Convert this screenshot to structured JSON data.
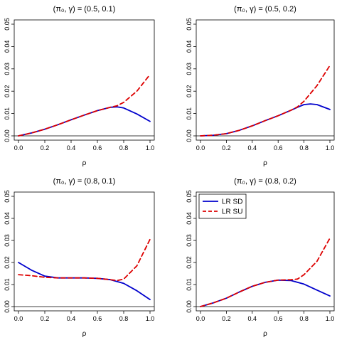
{
  "chart_data": [
    {
      "type": "line",
      "title": "(π₀, γ) = (0.5, 0.1)",
      "xlabel": "ρ",
      "ylabel": "",
      "xlim": [
        0,
        1
      ],
      "ylim": [
        0,
        0.05
      ],
      "xticks": [
        "0.0",
        "0.2",
        "0.4",
        "0.6",
        "0.8",
        "1.0"
      ],
      "yticks": [
        "0.00",
        "0.01",
        "0.02",
        "0.03",
        "0.04",
        "0.05"
      ],
      "reference_line_y": 0,
      "grid": false,
      "legend": null,
      "series": [
        {
          "name": "LR SD",
          "color": "#0000cc",
          "dash": "solid",
          "x": [
            0,
            0.1,
            0.2,
            0.3,
            0.4,
            0.5,
            0.6,
            0.7,
            0.75,
            0.8,
            0.9,
            1.0
          ],
          "y": [
            0,
            0.0013,
            0.003,
            0.005,
            0.0072,
            0.0093,
            0.0113,
            0.0128,
            0.013,
            0.0125,
            0.0098,
            0.0065
          ]
        },
        {
          "name": "LR SU",
          "color": "#dd0000",
          "dash": "dashed",
          "x": [
            0,
            0.1,
            0.2,
            0.3,
            0.4,
            0.5,
            0.6,
            0.7,
            0.75,
            0.8,
            0.9,
            1.0
          ],
          "y": [
            0,
            0.0013,
            0.003,
            0.005,
            0.0072,
            0.0093,
            0.0113,
            0.0128,
            0.0135,
            0.015,
            0.02,
            0.0275
          ]
        }
      ]
    },
    {
      "type": "line",
      "title": "(π₀, γ) = (0.5, 0.2)",
      "xlabel": "ρ",
      "ylabel": "",
      "xlim": [
        0,
        1
      ],
      "ylim": [
        0,
        0.05
      ],
      "xticks": [
        "0.0",
        "0.2",
        "0.4",
        "0.6",
        "0.8",
        "1.0"
      ],
      "yticks": [
        "0.00",
        "0.01",
        "0.02",
        "0.03",
        "0.04",
        "0.05"
      ],
      "reference_line_y": 0,
      "grid": false,
      "legend": null,
      "series": [
        {
          "name": "LR SD",
          "color": "#0000cc",
          "dash": "solid",
          "x": [
            0,
            0.1,
            0.2,
            0.3,
            0.4,
            0.5,
            0.6,
            0.7,
            0.75,
            0.8,
            0.85,
            0.9,
            1.0
          ],
          "y": [
            0,
            0.0003,
            0.001,
            0.0025,
            0.0045,
            0.0068,
            0.009,
            0.0115,
            0.0128,
            0.014,
            0.0143,
            0.014,
            0.0118
          ]
        },
        {
          "name": "LR SU",
          "color": "#dd0000",
          "dash": "dashed",
          "x": [
            0,
            0.1,
            0.2,
            0.3,
            0.4,
            0.5,
            0.6,
            0.7,
            0.75,
            0.8,
            0.9,
            1.0
          ],
          "y": [
            0,
            0.0003,
            0.001,
            0.0025,
            0.0045,
            0.0068,
            0.009,
            0.0115,
            0.013,
            0.0155,
            0.0225,
            0.0315
          ]
        }
      ]
    },
    {
      "type": "line",
      "title": "(π₀, γ) = (0.8, 0.1)",
      "xlabel": "ρ",
      "ylabel": "",
      "xlim": [
        0,
        1
      ],
      "ylim": [
        0,
        0.05
      ],
      "xticks": [
        "0.0",
        "0.2",
        "0.4",
        "0.6",
        "0.8",
        "1.0"
      ],
      "yticks": [
        "0.00",
        "0.01",
        "0.02",
        "0.03",
        "0.04",
        "0.05"
      ],
      "reference_line_y": 0,
      "grid": false,
      "legend": null,
      "series": [
        {
          "name": "LR SD",
          "color": "#0000cc",
          "dash": "solid",
          "x": [
            0,
            0.1,
            0.2,
            0.3,
            0.4,
            0.5,
            0.6,
            0.7,
            0.8,
            0.9,
            1.0
          ],
          "y": [
            0.02,
            0.0165,
            0.0138,
            0.013,
            0.013,
            0.013,
            0.0128,
            0.0122,
            0.0105,
            0.0072,
            0.0032
          ]
        },
        {
          "name": "LR SU",
          "color": "#dd0000",
          "dash": "dashed",
          "x": [
            0,
            0.1,
            0.2,
            0.3,
            0.4,
            0.5,
            0.6,
            0.7,
            0.75,
            0.8,
            0.9,
            1.0
          ],
          "y": [
            0.0145,
            0.014,
            0.0133,
            0.013,
            0.013,
            0.013,
            0.0128,
            0.0122,
            0.0118,
            0.0125,
            0.0185,
            0.0305
          ]
        }
      ]
    },
    {
      "type": "line",
      "title": "(π₀, γ) = (0.8, 0.2)",
      "xlabel": "ρ",
      "ylabel": "",
      "xlim": [
        0,
        1
      ],
      "ylim": [
        0,
        0.05
      ],
      "xticks": [
        "0.0",
        "0.2",
        "0.4",
        "0.6",
        "0.8",
        "1.0"
      ],
      "yticks": [
        "0.00",
        "0.01",
        "0.02",
        "0.03",
        "0.04",
        "0.05"
      ],
      "reference_line_y": 0,
      "grid": false,
      "legend": {
        "position": "top-left",
        "entries": [
          "LR SD",
          "LR SU"
        ]
      },
      "series": [
        {
          "name": "LR SD",
          "color": "#0000cc",
          "dash": "solid",
          "x": [
            0,
            0.1,
            0.2,
            0.3,
            0.4,
            0.5,
            0.6,
            0.7,
            0.8,
            0.9,
            1.0
          ],
          "y": [
            0,
            0.0017,
            0.0038,
            0.0066,
            0.0092,
            0.011,
            0.012,
            0.0118,
            0.0102,
            0.0075,
            0.0048
          ]
        },
        {
          "name": "LR SU",
          "color": "#dd0000",
          "dash": "dashed",
          "x": [
            0,
            0.1,
            0.2,
            0.3,
            0.4,
            0.5,
            0.6,
            0.7,
            0.75,
            0.8,
            0.9,
            1.0
          ],
          "y": [
            0,
            0.0017,
            0.0038,
            0.0066,
            0.0092,
            0.011,
            0.012,
            0.0122,
            0.0125,
            0.0145,
            0.0205,
            0.031
          ]
        }
      ]
    }
  ]
}
